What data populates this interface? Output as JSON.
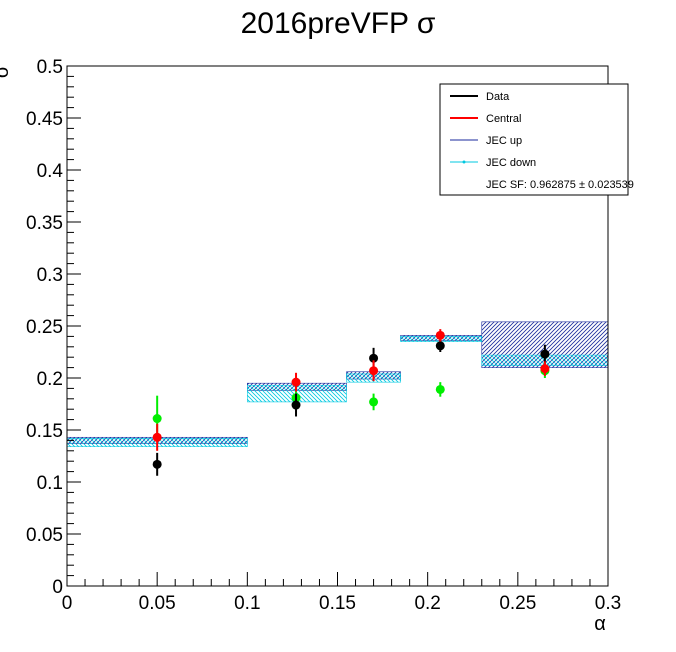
{
  "chart_data": {
    "type": "scatter",
    "title": "2016preVFP σ",
    "xlabel": "α",
    "ylabel": "σ",
    "xlim": [
      0,
      0.3
    ],
    "ylim": [
      0,
      0.5
    ],
    "x_ticks": [
      "0",
      "0.05",
      "0.1",
      "0.15",
      "0.2",
      "0.25",
      "0.3"
    ],
    "y_ticks": [
      "0",
      "0.05",
      "0.1",
      "0.15",
      "0.2",
      "0.25",
      "0.3",
      "0.35",
      "0.4",
      "0.45",
      "0.5"
    ],
    "legend_position": "top-right",
    "legend": {
      "data": "Data",
      "central": "Central",
      "jec_up": "JEC up",
      "jec_down": "JEC down",
      "sf_text": "JEC SF: 0.962875 ± 0.023539"
    },
    "colors": {
      "data": "#000000",
      "central": "#ff0000",
      "green": "#00ee00",
      "jec_up": "#1a2a9c",
      "jec_down": "#00c8e0"
    },
    "series": [
      {
        "name": "Data",
        "x": [
          0.05,
          0.127,
          0.17,
          0.207,
          0.265
        ],
        "y": [
          0.117,
          0.174,
          0.219,
          0.231,
          0.223
        ],
        "err": [
          0.011,
          0.011,
          0.01,
          0.006,
          0.009
        ]
      },
      {
        "name": "Central",
        "x": [
          0.05,
          0.127,
          0.17,
          0.207,
          0.265
        ],
        "y": [
          0.143,
          0.196,
          0.207,
          0.241,
          0.209
        ],
        "err": [
          0.013,
          0.009,
          0.01,
          0.006,
          0.007
        ]
      },
      {
        "x": [
          0.05,
          0.127,
          0.17,
          0.207,
          0.265
        ],
        "y": [
          0.161,
          0.181,
          0.177,
          0.189,
          0.207
        ],
        "err": [
          0.022,
          0.01,
          0.008,
          0.007,
          0.007
        ]
      }
    ],
    "bands": [
      {
        "name": "JEC up",
        "bins": [
          {
            "x0": 0.0,
            "x1": 0.1,
            "y0": 0.137,
            "y1": 0.143
          },
          {
            "x0": 0.1,
            "x1": 0.155,
            "y0": 0.188,
            "y1": 0.195
          },
          {
            "x0": 0.155,
            "x1": 0.185,
            "y0": 0.199,
            "y1": 0.206
          },
          {
            "x0": 0.185,
            "x1": 0.23,
            "y0": 0.236,
            "y1": 0.241
          },
          {
            "x0": 0.23,
            "x1": 0.3,
            "y0": 0.21,
            "y1": 0.254
          }
        ]
      },
      {
        "name": "JEC down",
        "bins": [
          {
            "x0": 0.0,
            "x1": 0.1,
            "y0": 0.134,
            "y1": 0.142
          },
          {
            "x0": 0.1,
            "x1": 0.155,
            "y0": 0.177,
            "y1": 0.193
          },
          {
            "x0": 0.155,
            "x1": 0.185,
            "y0": 0.196,
            "y1": 0.204
          },
          {
            "x0": 0.185,
            "x1": 0.23,
            "y0": 0.235,
            "y1": 0.24
          },
          {
            "x0": 0.23,
            "x1": 0.3,
            "y0": 0.212,
            "y1": 0.222
          }
        ]
      }
    ]
  }
}
